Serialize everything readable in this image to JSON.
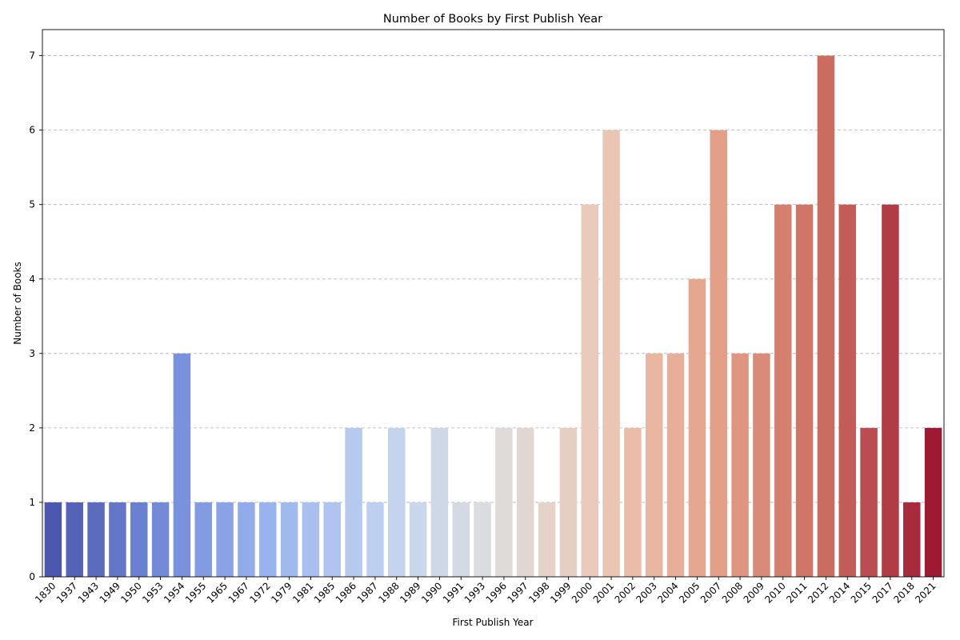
{
  "chart_data": {
    "type": "bar",
    "title": "Number of Books by First Publish Year",
    "xlabel": "First Publish Year",
    "ylabel": "Number of Books",
    "categories": [
      "1830",
      "1937",
      "1943",
      "1949",
      "1950",
      "1953",
      "1954",
      "1955",
      "1965",
      "1967",
      "1972",
      "1979",
      "1981",
      "1985",
      "1986",
      "1987",
      "1988",
      "1989",
      "1990",
      "1991",
      "1993",
      "1996",
      "1997",
      "1998",
      "1999",
      "2000",
      "2001",
      "2002",
      "2003",
      "2004",
      "2005",
      "2007",
      "2008",
      "2009",
      "2010",
      "2011",
      "2012",
      "2014",
      "2015",
      "2017",
      "2018",
      "2021"
    ],
    "values": [
      1,
      1,
      1,
      1,
      1,
      1,
      3,
      1,
      1,
      1,
      1,
      1,
      1,
      1,
      2,
      1,
      2,
      1,
      2,
      1,
      1,
      2,
      2,
      1,
      2,
      5,
      6,
      2,
      3,
      3,
      4,
      6,
      3,
      3,
      5,
      5,
      7,
      5,
      2,
      5,
      1,
      2
    ],
    "ylim": [
      0,
      7.35
    ],
    "yticks": [
      0,
      1,
      2,
      3,
      4,
      5,
      6,
      7
    ],
    "grid": "y-axis dashed",
    "colormap": "coolwarm",
    "legend": "none"
  }
}
